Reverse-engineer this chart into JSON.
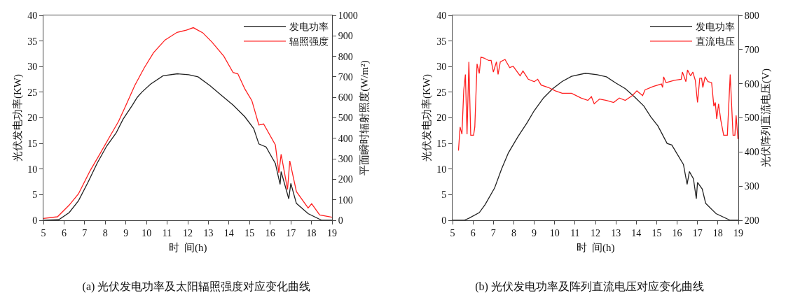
{
  "chart_data": [
    {
      "type": "line",
      "title": "(a) 光伏发电功率及太阳辐照强度对应变化曲线",
      "xlabel": "时  间(h)",
      "ylabel": "光伏发电功率(KW)",
      "y2label": "平面瞬时辐射照度(W/m²)",
      "xlim": [
        5,
        19
      ],
      "xticks": [
        5,
        6,
        7,
        8,
        9,
        10,
        11,
        12,
        13,
        14,
        15,
        16,
        17,
        18,
        19
      ],
      "ylim": [
        0,
        40
      ],
      "yticks": [
        0,
        5,
        10,
        15,
        20,
        25,
        30,
        35,
        40
      ],
      "y2lim": [
        0,
        1000
      ],
      "y2ticks": [
        0,
        100,
        200,
        300,
        400,
        500,
        600,
        700,
        800,
        900,
        1000
      ],
      "grid": false,
      "legend": "top right",
      "marker": "none",
      "line_style": "solid",
      "series": [
        {
          "name": "发电功率",
          "color": "#222222",
          "x": [
            5,
            5.74,
            6.25,
            6.7,
            7.16,
            7.6,
            8.07,
            8.52,
            8.86,
            9.32,
            9.55,
            9.77,
            10.2,
            10.8,
            11.5,
            12.05,
            12.5,
            13.07,
            13.6,
            14.2,
            14.77,
            15.2,
            15.45,
            15.8,
            16.25,
            16.48,
            16.53,
            16.9,
            17.0,
            17.27,
            17.84,
            18.5,
            19
          ],
          "values": [
            0,
            0.1,
            1.5,
            3.8,
            7.4,
            11.1,
            14.5,
            17,
            19.7,
            22.5,
            24,
            25,
            26.6,
            28.2,
            28.6,
            28.4,
            28,
            26.3,
            24.5,
            22.5,
            20.2,
            17.9,
            14.9,
            14.3,
            11.1,
            7,
            9.5,
            4.2,
            7.2,
            3.3,
            1.3,
            0,
            0
          ]
        },
        {
          "name": "辐照强度",
          "color": "#ff2020",
          "axis": "y2",
          "x": [
            5,
            5.68,
            6.25,
            6.7,
            7.27,
            7.73,
            8.18,
            8.64,
            8.98,
            9.43,
            9.89,
            10.34,
            10.9,
            11.48,
            11.93,
            12.27,
            12.73,
            13.18,
            13.75,
            14.2,
            14.43,
            14.77,
            15.11,
            15.45,
            15.68,
            16.25,
            16.42,
            16.53,
            16.84,
            16.95,
            17.27,
            17.84,
            18.01,
            18.4,
            19
          ],
          "values": [
            9,
            17,
            74,
            129,
            243,
            322,
            402,
            482,
            556,
            658,
            744,
            818,
            880,
            917,
            928,
            940,
            915,
            869,
            801,
            721,
            715,
            641,
            584,
            465,
            470,
            368,
            231,
            322,
            151,
            290,
            140,
            60,
            81,
            26,
            15
          ]
        }
      ]
    },
    {
      "type": "line",
      "title": "(b) 光伏发电功率及阵列直流电压对应变化曲线",
      "xlabel": "时  间(h)",
      "ylabel": "光伏发电功率(KW)",
      "y2label": "光伏阵列直流电压(V)",
      "xlim": [
        5,
        19
      ],
      "xticks": [
        5,
        6,
        7,
        8,
        9,
        10,
        11,
        12,
        13,
        14,
        15,
        16,
        17,
        18,
        19
      ],
      "ylim": [
        0,
        40
      ],
      "yticks": [
        0,
        5,
        10,
        15,
        20,
        25,
        30,
        35,
        40
      ],
      "y2lim": [
        200,
        800
      ],
      "y2ticks": [
        200,
        300,
        400,
        500,
        600,
        700,
        800
      ],
      "grid": false,
      "legend": "top right",
      "marker": "none",
      "line_style": "solid",
      "series": [
        {
          "name": "发电功率",
          "color": "#222222",
          "x": [
            5,
            5.57,
            5.8,
            6.31,
            6.6,
            7.06,
            7.4,
            7.74,
            8.2,
            8.66,
            9.0,
            9.46,
            9.91,
            10.37,
            10.83,
            11.51,
            12.09,
            12.54,
            13.0,
            13.46,
            13.91,
            14.37,
            14.71,
            15.06,
            15.51,
            15.74,
            16.31,
            16.49,
            16.6,
            16.8,
            16.94,
            17.0,
            17.23,
            17.4,
            17.91,
            18.6,
            19
          ],
          "values": [
            0,
            0,
            0.4,
            1.5,
            3.1,
            6.3,
            10,
            13.2,
            16.3,
            19.1,
            21.4,
            23.9,
            25.7,
            27.1,
            28.1,
            28.7,
            28.4,
            28,
            26.8,
            25.7,
            24.1,
            22.3,
            20.2,
            18.4,
            15,
            14.7,
            10.9,
            7,
            9.5,
            8.1,
            4.2,
            7.4,
            6.1,
            3.3,
            1.3,
            0,
            0
          ]
        },
        {
          "name": "直流电压",
          "color": "#ff2020",
          "axis": "y2",
          "x": [
            5.29,
            5.37,
            5.46,
            5.55,
            5.63,
            5.71,
            5.8,
            5.89,
            6.03,
            6.09,
            6.2,
            6.31,
            6.39,
            6.54,
            6.77,
            6.89,
            7.0,
            7.15,
            7.23,
            7.34,
            7.57,
            7.8,
            7.97,
            8.31,
            8.45,
            8.71,
            9.0,
            9.17,
            9.34,
            9.69,
            10.03,
            10.37,
            10.83,
            11.29,
            11.63,
            11.8,
            11.94,
            12.2,
            12.54,
            12.89,
            13.17,
            13.46,
            13.8,
            14.03,
            14.31,
            14.43,
            14.83,
            15.23,
            15.29,
            15.34,
            15.46,
            15.86,
            16.2,
            16.26,
            16.43,
            16.51,
            16.66,
            16.77,
            16.89,
            17.0,
            17.11,
            17.2,
            17.26,
            17.37,
            17.51,
            17.69,
            17.8,
            17.87,
            17.94,
            18.03,
            18.14,
            18.28,
            18.46,
            18.6,
            18.74,
            18.83,
            18.89,
            18.98
          ],
          "values": [
            404,
            473,
            452,
            582,
            627,
            452,
            664,
            449,
            449,
            473,
            658,
            630,
            678,
            675,
            668,
            668,
            634,
            664,
            627,
            664,
            671,
            647,
            651,
            623,
            637,
            613,
            606,
            613,
            596,
            589,
            579,
            572,
            572,
            558,
            551,
            562,
            541,
            555,
            551,
            545,
            558,
            551,
            565,
            579,
            565,
            582,
            592,
            599,
            589,
            620,
            603,
            610,
            613,
            634,
            606,
            640,
            623,
            634,
            610,
            545,
            616,
            616,
            589,
            620,
            606,
            603,
            534,
            545,
            497,
            541,
            493,
            449,
            449,
            627,
            449,
            449,
            507,
            438
          ]
        }
      ]
    }
  ]
}
